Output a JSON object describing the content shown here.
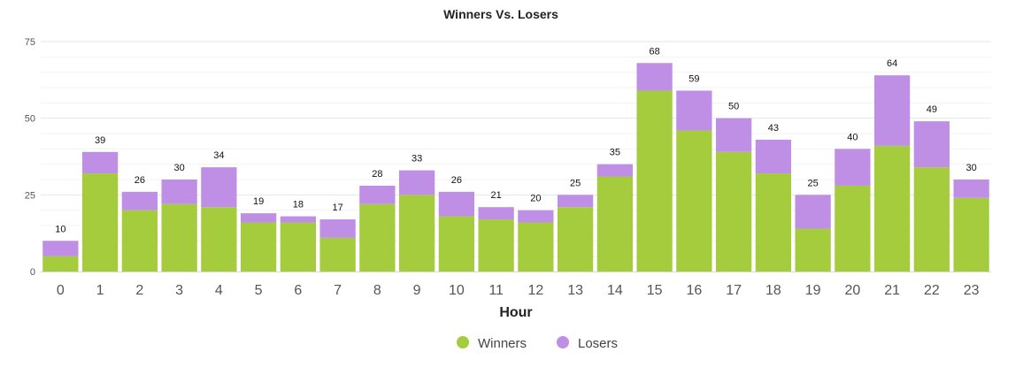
{
  "chart_data": {
    "type": "bar",
    "stacked": true,
    "title": "Winners Vs. Losers",
    "xlabel": "Hour",
    "ylabel": "",
    "ylim": [
      0,
      75
    ],
    "yticks": [
      "0",
      "25",
      "50",
      "75"
    ],
    "grid": true,
    "legend_position": "bottom-center",
    "categories": [
      "0",
      "1",
      "2",
      "3",
      "4",
      "5",
      "6",
      "7",
      "8",
      "9",
      "10",
      "11",
      "12",
      "13",
      "14",
      "15",
      "16",
      "17",
      "18",
      "19",
      "20",
      "21",
      "22",
      "23"
    ],
    "series": [
      {
        "name": "Winners",
        "color": "#a5cc3d",
        "values": [
          5,
          32,
          20,
          22,
          21,
          16,
          16,
          11,
          22,
          25,
          18,
          17,
          16,
          21,
          31,
          59,
          46,
          39,
          32,
          14,
          28,
          41,
          34,
          24
        ]
      },
      {
        "name": "Losers",
        "color": "#bf8fe6",
        "values": [
          5,
          7,
          6,
          8,
          13,
          3,
          2,
          6,
          6,
          8,
          8,
          4,
          4,
          4,
          4,
          9,
          13,
          11,
          11,
          11,
          12,
          23,
          15,
          6
        ]
      }
    ],
    "totals": [
      "10",
      "39",
      "26",
      "30",
      "34",
      "19",
      "18",
      "17",
      "28",
      "33",
      "26",
      "21",
      "20",
      "25",
      "35",
      "68",
      "59",
      "50",
      "43",
      "25",
      "40",
      "64",
      "49",
      "30"
    ]
  }
}
